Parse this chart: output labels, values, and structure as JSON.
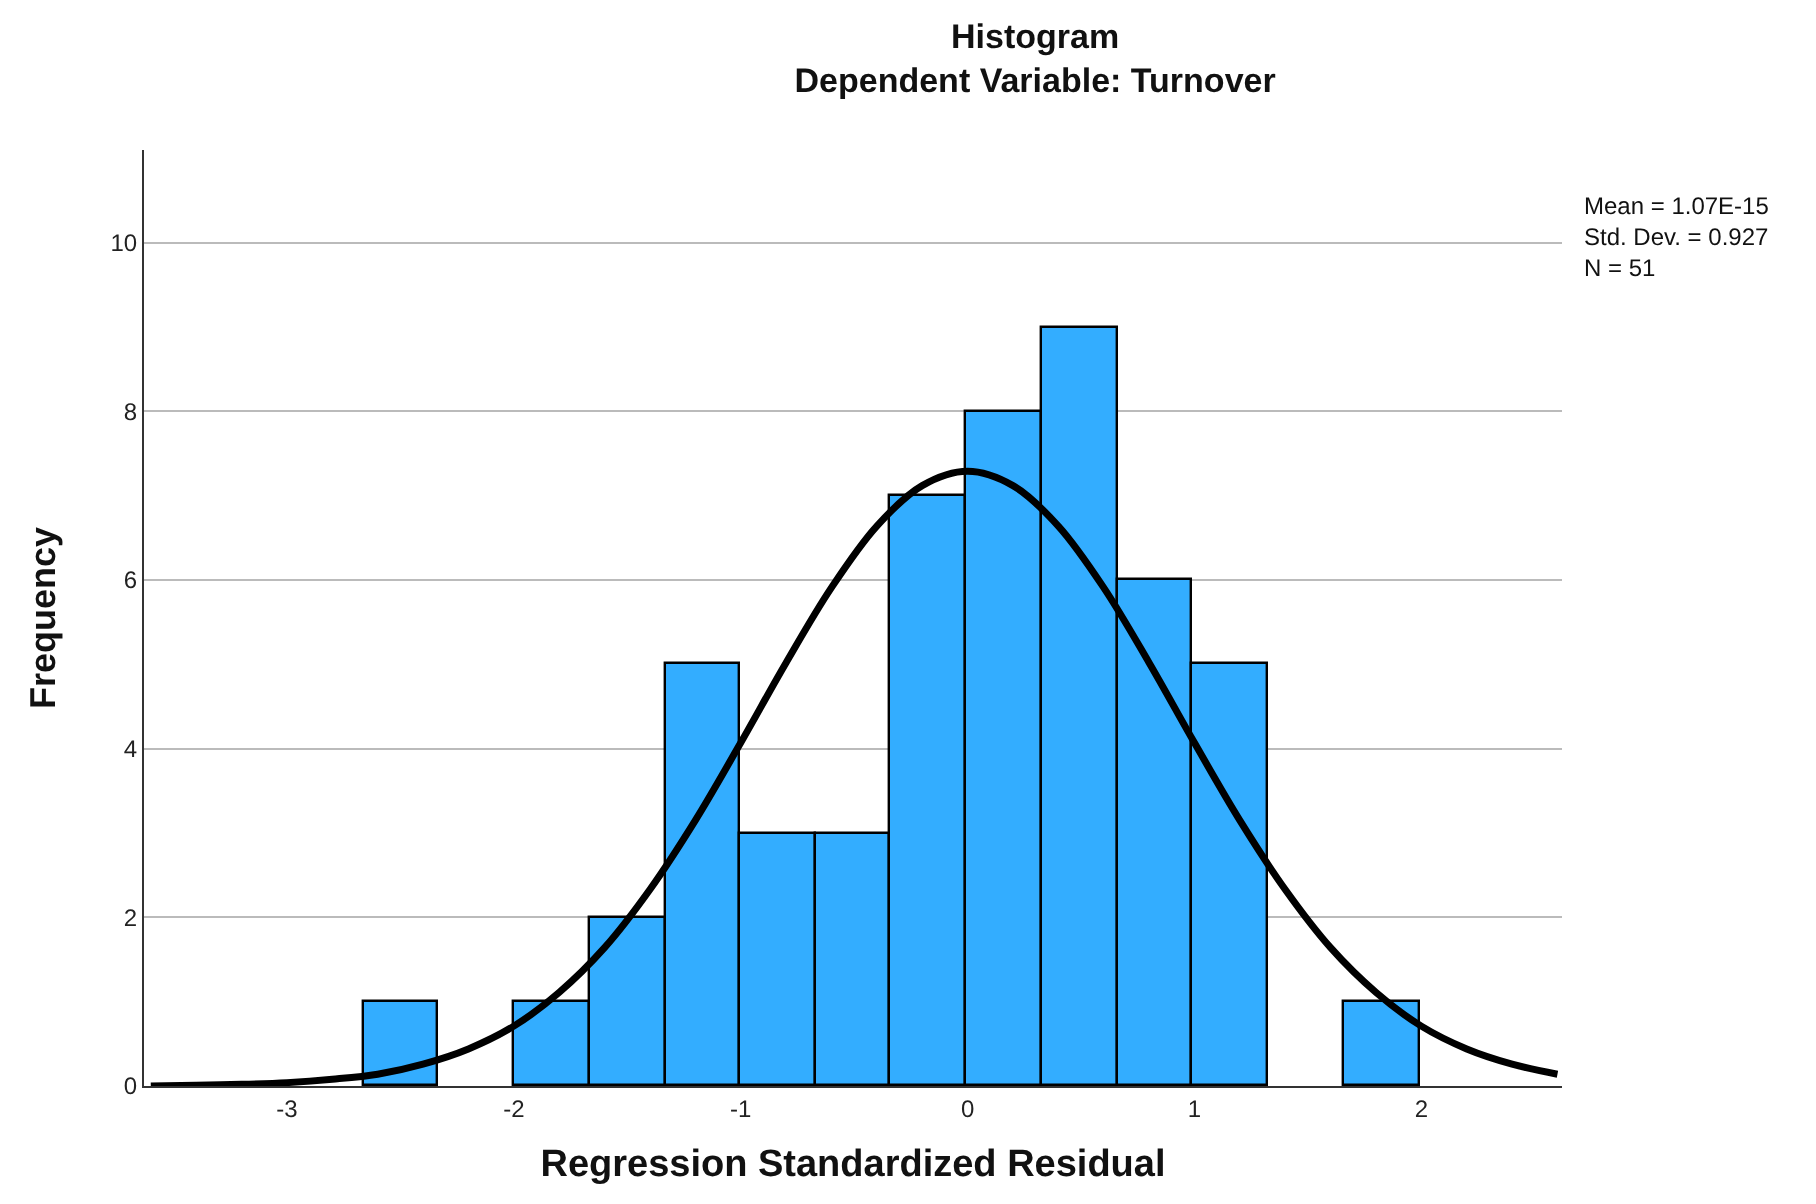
{
  "chart_data": {
    "type": "histogram",
    "title": "Histogram",
    "subtitle": "Dependent Variable: Turnover",
    "xlabel": "Regression Standardized Residual",
    "ylabel": "Frequency",
    "bins": [
      -2.66,
      -2.33,
      -2.0,
      -1.66,
      -1.33,
      -1.0,
      -0.67,
      -0.34,
      -0.01,
      0.33,
      0.66,
      0.99,
      1.32,
      1.66,
      1.99
    ],
    "values": [
      1,
      0,
      1,
      2,
      5,
      3,
      3,
      7,
      8,
      9,
      6,
      5,
      0,
      1
    ],
    "color": "#33adff",
    "series": [
      {
        "type": "line",
        "color": "#000000",
        "x": [
          -3.6,
          -3.4,
          -3.2,
          -3.0,
          -2.8,
          -2.6,
          -2.4,
          -2.2,
          -2.0,
          -1.8,
          -1.6,
          -1.4,
          -1.2,
          -1.0,
          -0.8,
          -0.6,
          -0.4,
          -0.2,
          0,
          0.2,
          0.4,
          0.6,
          0.8,
          1.0,
          1.2,
          1.4,
          1.6,
          1.8,
          2.0,
          2.2,
          2.4,
          2.6
        ],
        "values": [
          0.0,
          0.01,
          0.02,
          0.04,
          0.08,
          0.14,
          0.26,
          0.44,
          0.71,
          1.11,
          1.64,
          2.33,
          3.15,
          4.07,
          5.02,
          5.91,
          6.64,
          7.12,
          7.29,
          7.12,
          6.64,
          5.91,
          5.02,
          4.07,
          3.15,
          2.33,
          1.64,
          1.11,
          0.71,
          0.44,
          0.26,
          0.14
        ]
      }
    ],
    "xlim": [
      -3.63,
      2.62
    ],
    "xticks": [
      -3,
      -2,
      -1,
      0,
      1,
      2
    ],
    "ylim": [
      0,
      11.1
    ],
    "yticks": [
      0,
      2,
      4,
      6,
      8,
      10
    ],
    "grid": "y",
    "annotations": [
      "Mean = 1.07E-15\nStd. Dev. = 0.927\nN = 51"
    ]
  }
}
